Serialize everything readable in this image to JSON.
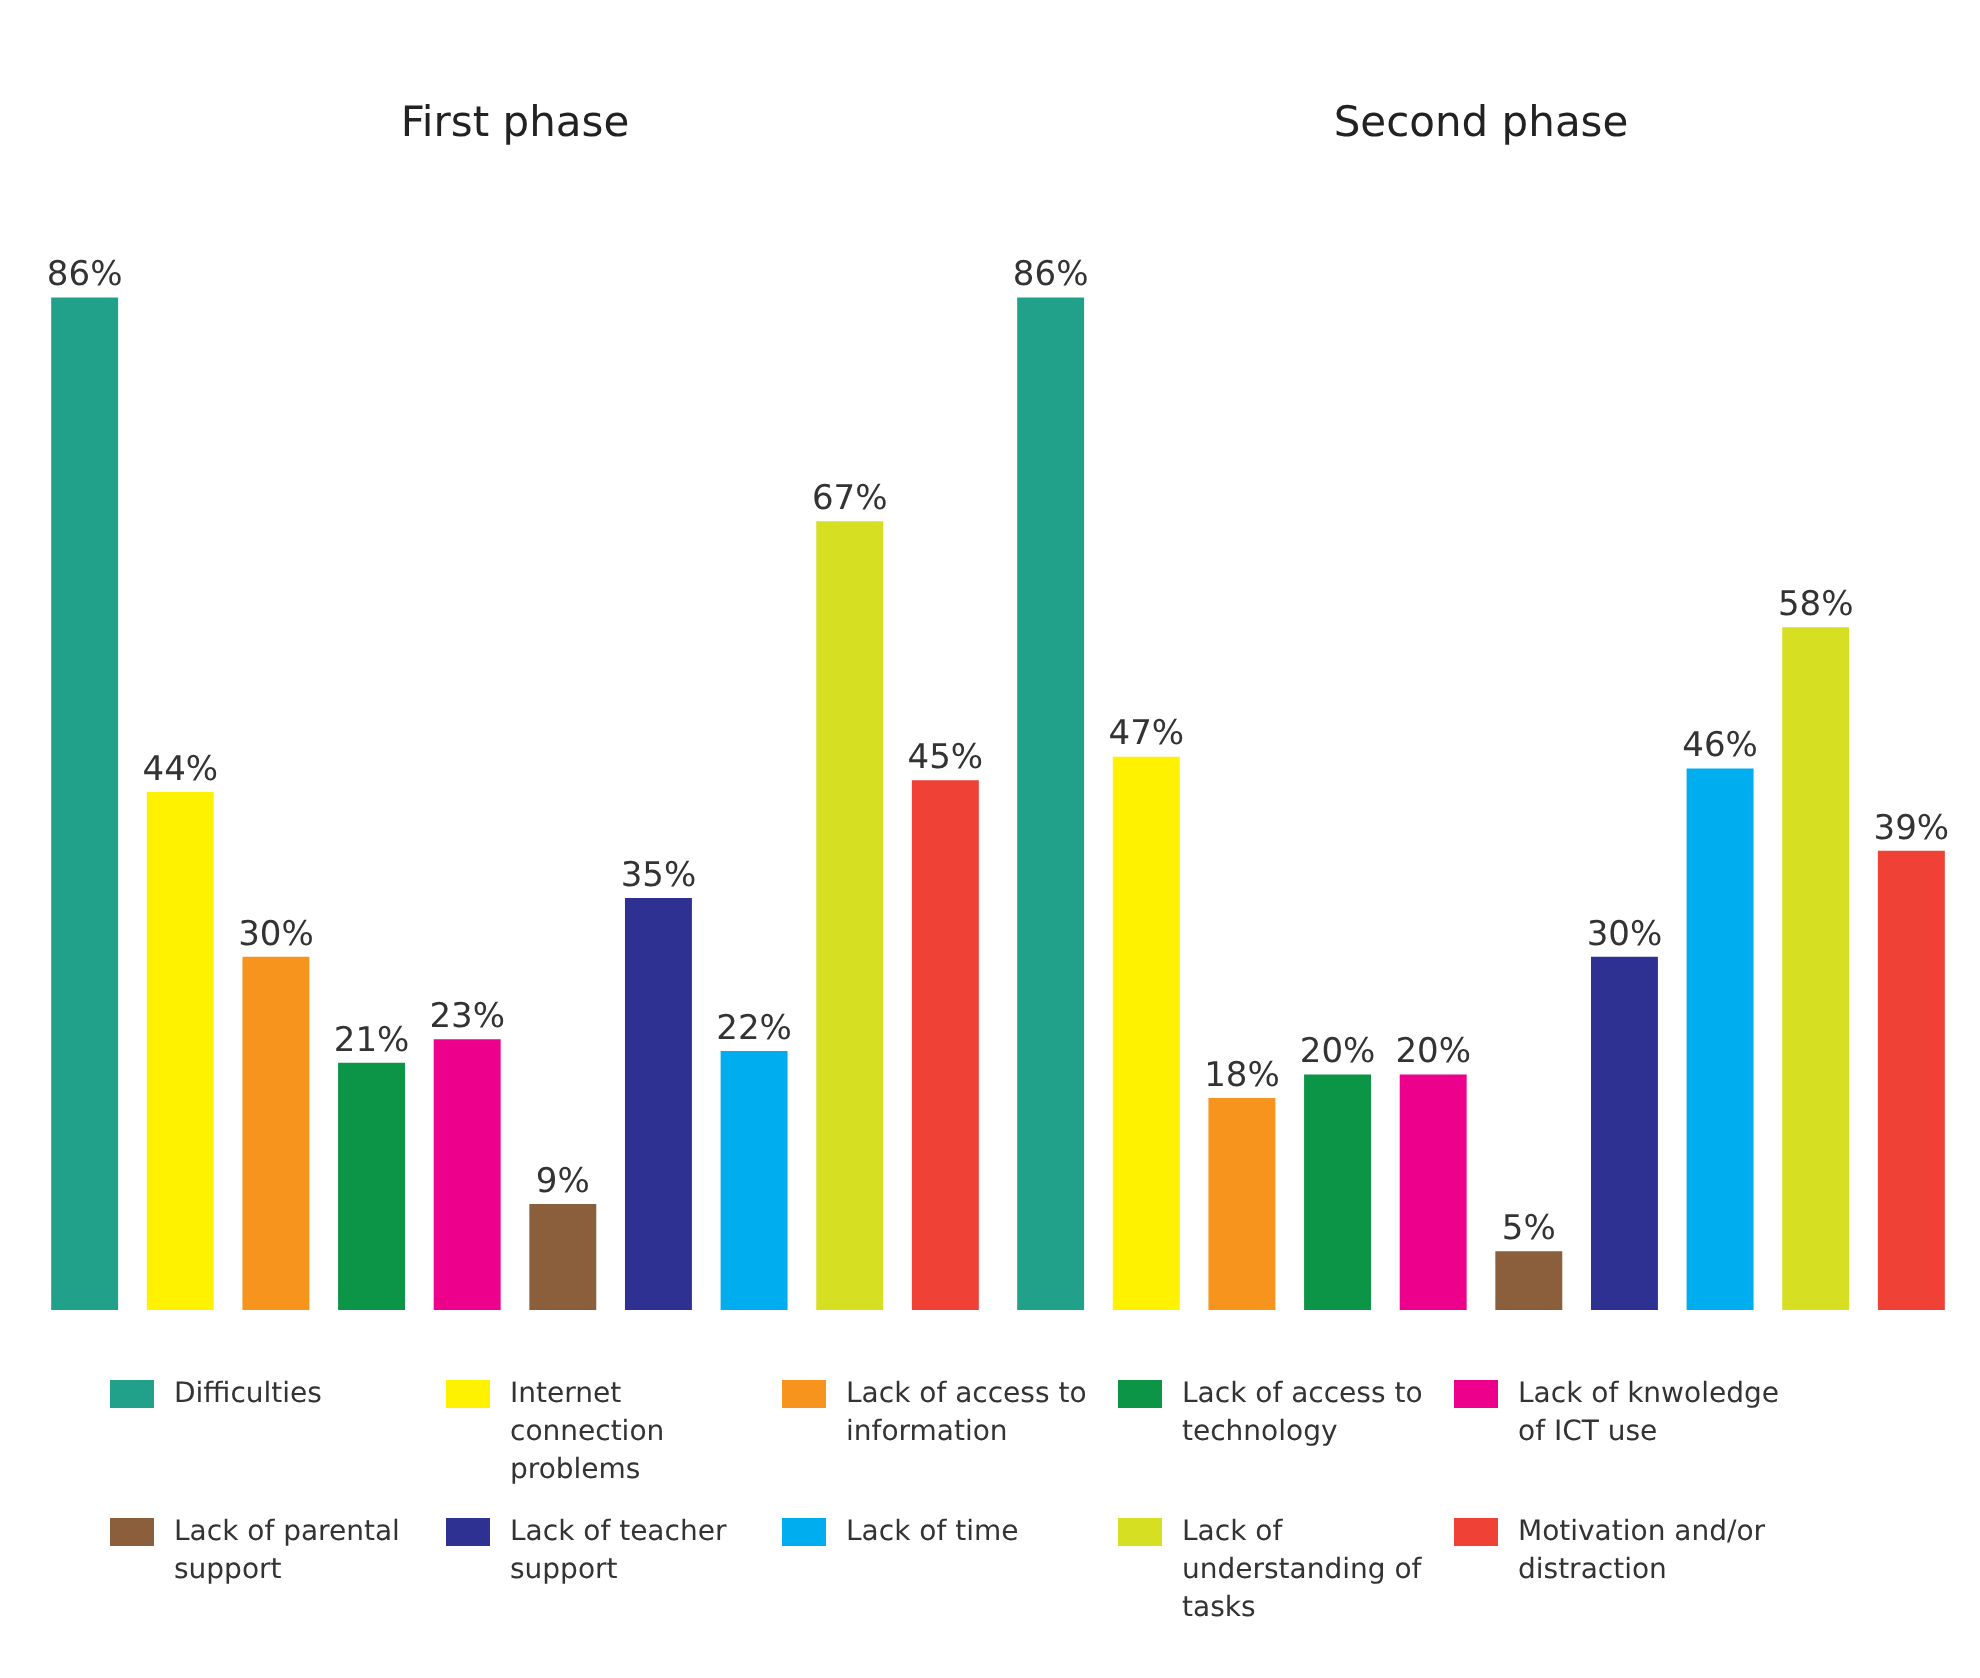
{
  "chart_data": {
    "type": "bar",
    "categories": [
      "First phase",
      "Second phase"
    ],
    "series": [
      {
        "name": "Difficulties",
        "color": "#21a18a",
        "values": [
          86,
          86
        ],
        "value_labels": [
          "86%",
          "86%"
        ]
      },
      {
        "name": "Internet connection problems",
        "color": "#fff200",
        "values": [
          44,
          47
        ],
        "value_labels": [
          "44%",
          "47%"
        ]
      },
      {
        "name": "Lack of access to information",
        "color": "#f7941d",
        "values": [
          30,
          18
        ],
        "value_labels": [
          "30%",
          "18%"
        ]
      },
      {
        "name": "Lack of access to technology",
        "color": "#0c9447",
        "values": [
          21,
          20
        ],
        "value_labels": [
          "21%",
          "20%"
        ]
      },
      {
        "name": "Lack of knwoledge of ICT use",
        "color": "#ec008c",
        "values": [
          23,
          20
        ],
        "value_labels": [
          "23%",
          "20%"
        ]
      },
      {
        "name": "Lack of parental support",
        "color": "#8b5e3c",
        "values": [
          9,
          5
        ],
        "value_labels": [
          "9%",
          "5%"
        ]
      },
      {
        "name": "Lack of teacher support",
        "color": "#2e3192",
        "values": [
          35,
          30
        ],
        "value_labels": [
          "35%",
          "30%"
        ]
      },
      {
        "name": "Lack of time",
        "color": "#00aeef",
        "values": [
          22,
          46
        ],
        "value_labels": [
          "22%",
          "46%"
        ]
      },
      {
        "name": "Lack of understanding of tasks",
        "color": "#d7df23",
        "values": [
          67,
          58
        ],
        "value_labels": [
          "67%",
          "58%"
        ]
      },
      {
        "name": "Motivation and/or distraction",
        "color": "#ef4136",
        "values": [
          45,
          39
        ],
        "value_labels": [
          "45%",
          "39%"
        ]
      }
    ],
    "relative": false,
    "grid": false,
    "legend": "bottom"
  }
}
